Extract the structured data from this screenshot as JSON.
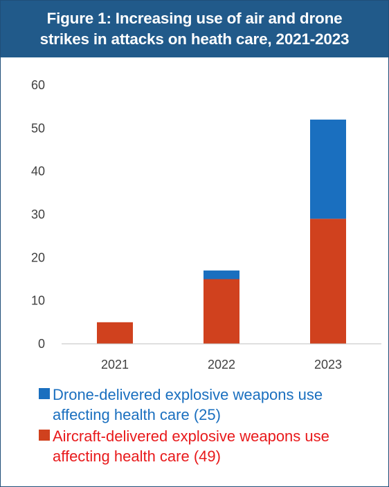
{
  "title": "Figure 1: Increasing use of air and drone strikes in attacks on heath care, 2021-2023",
  "colors": {
    "header_bg": "#215a8a",
    "drone": "#1a6fbf",
    "aircraft": "#d0411e",
    "aircraft_legend_text": "#e8191b"
  },
  "chart_data": {
    "type": "bar",
    "stacked": true,
    "title": "Figure 1: Increasing use of air and drone strikes in attacks on heath care, 2021-2023",
    "categories": [
      "2021",
      "2022",
      "2023"
    ],
    "series": [
      {
        "name": "Aircraft-delivered explosive weapons use affecting health care (49)",
        "values": [
          5,
          15,
          29
        ],
        "color": "#d0411e"
      },
      {
        "name": "Drone-delivered explosive weapons use affecting health care (25)",
        "values": [
          0,
          2,
          23
        ],
        "color": "#1a6fbf"
      }
    ],
    "ylim": [
      0,
      60
    ],
    "yticks": [
      "0",
      "10",
      "20",
      "30",
      "40",
      "50",
      "60"
    ],
    "xlabel": "",
    "ylabel": "",
    "grid": false,
    "legend_position": "bottom"
  },
  "legend": [
    {
      "label": "Drone-delivered explosive weapons use affecting health care (25)",
      "color": "#1a6fbf",
      "text_color": "#1a6fbf"
    },
    {
      "label": "Aircraft-delivered explosive weapons use affecting health care (49)",
      "color": "#d0411e",
      "text_color": "#e8191b"
    }
  ]
}
